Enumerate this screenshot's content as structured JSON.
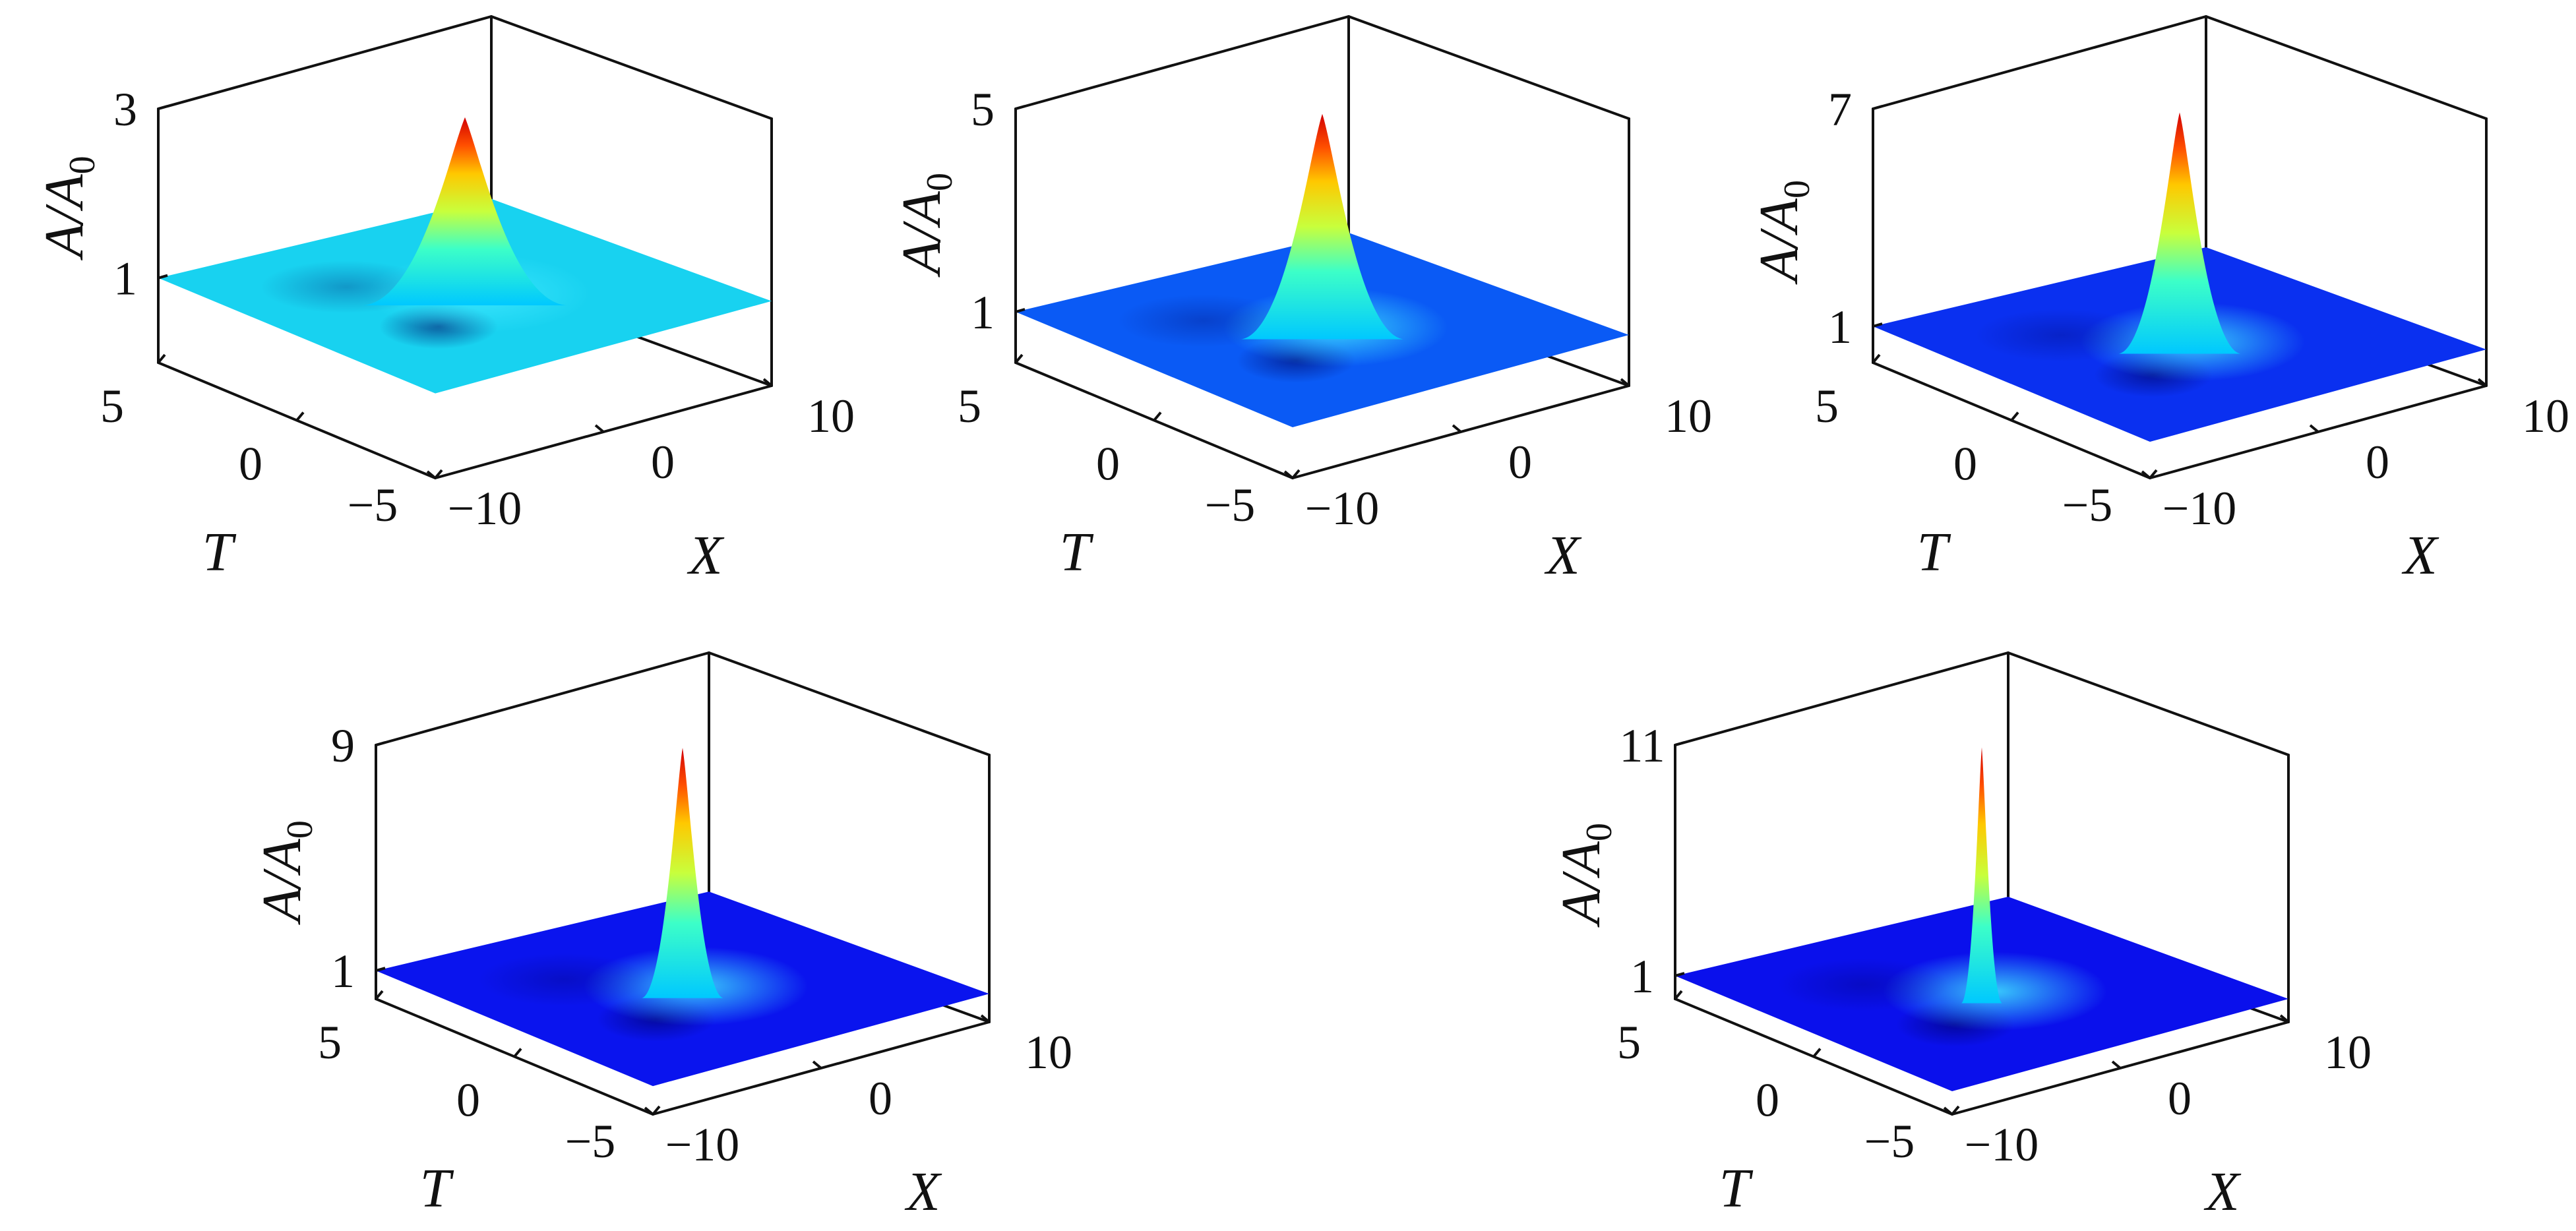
{
  "chart_data": [
    {
      "type": "surface",
      "zlabel": "A/A",
      "zlabel_sub": "0",
      "xlabel": "X",
      "ylabel": "T",
      "x_ticks": [
        "−10",
        "0",
        "10"
      ],
      "t_ticks": [
        "5",
        "0",
        "−5"
      ],
      "z_ticks": [
        "1",
        "3"
      ],
      "xlim": [
        -10,
        10
      ],
      "tlim": [
        -5,
        5
      ],
      "zlim": [
        0,
        3
      ],
      "peak": 2.9,
      "background": 1,
      "base_color": "#18D2F0"
    },
    {
      "type": "surface",
      "zlabel": "A/A",
      "zlabel_sub": "0",
      "xlabel": "X",
      "ylabel": "T",
      "x_ticks": [
        "−10",
        "0",
        "10"
      ],
      "t_ticks": [
        "5",
        "0",
        "−5"
      ],
      "z_ticks": [
        "1",
        "5"
      ],
      "xlim": [
        -10,
        10
      ],
      "tlim": [
        -5,
        5
      ],
      "zlim": [
        0,
        5
      ],
      "peak": 4.9,
      "background": 1,
      "base_color": "#0A5AF5"
    },
    {
      "type": "surface",
      "zlabel": "A/A",
      "zlabel_sub": "0",
      "xlabel": "X",
      "ylabel": "T",
      "x_ticks": [
        "−10",
        "0",
        "10"
      ],
      "t_ticks": [
        "5",
        "0",
        "−5"
      ],
      "z_ticks": [
        "1",
        "7"
      ],
      "xlim": [
        -10,
        10
      ],
      "tlim": [
        -5,
        5
      ],
      "zlim": [
        0,
        7
      ],
      "peak": 6.9,
      "background": 1,
      "base_color": "#0A30F0"
    },
    {
      "type": "surface",
      "zlabel": "A/A",
      "zlabel_sub": "0",
      "xlabel": "X",
      "ylabel": "T",
      "x_ticks": [
        "−10",
        "0",
        "10"
      ],
      "t_ticks": [
        "5",
        "0",
        "−5"
      ],
      "z_ticks": [
        "1",
        "9"
      ],
      "xlim": [
        -10,
        10
      ],
      "tlim": [
        -5,
        5
      ],
      "zlim": [
        0,
        9
      ],
      "peak": 8.9,
      "background": 1,
      "base_color": "#0A14EE"
    },
    {
      "type": "surface",
      "zlabel": "A/A",
      "zlabel_sub": "0",
      "xlabel": "X",
      "ylabel": "T",
      "x_ticks": [
        "−10",
        "0",
        "10"
      ],
      "t_ticks": [
        "5",
        "0",
        "−5"
      ],
      "z_ticks": [
        "1",
        "11"
      ],
      "xlim": [
        -10,
        10
      ],
      "tlim": [
        -5,
        5
      ],
      "zlim": [
        0,
        11
      ],
      "peak": 10.9,
      "background": 1,
      "base_color": "#0A10EC"
    }
  ]
}
